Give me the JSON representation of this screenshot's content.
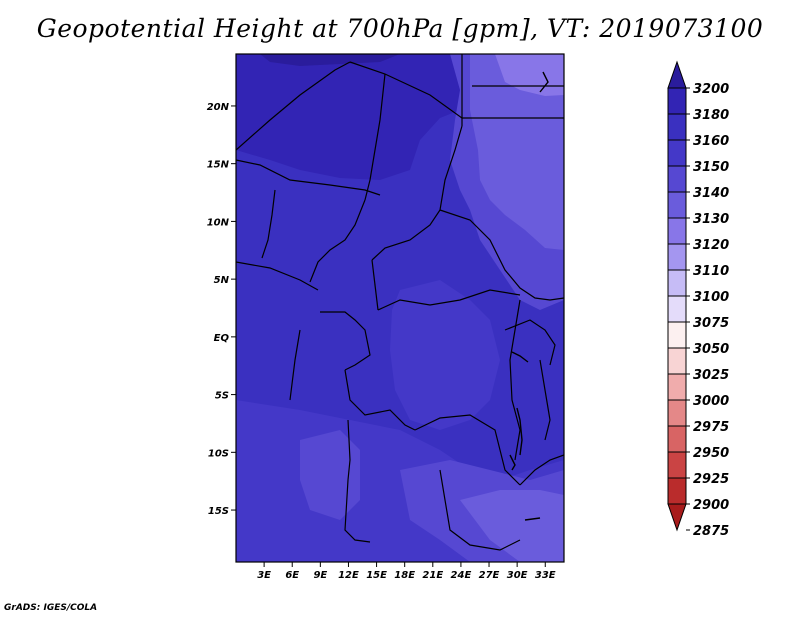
{
  "title": "Geopotential Height at 700hPa [gpm], VT: 2019073100",
  "credit": "GrADS: IGES/COLA",
  "map": {
    "lat_range": [
      -19.5,
      24.5
    ],
    "lon_range": [
      0,
      35
    ],
    "lat_ticks": [
      {
        "value": 20,
        "label": "20N"
      },
      {
        "value": 15,
        "label": "15N"
      },
      {
        "value": 10,
        "label": "10N"
      },
      {
        "value": 5,
        "label": "5N"
      },
      {
        "value": 0,
        "label": "EQ"
      },
      {
        "value": -5,
        "label": "5S"
      },
      {
        "value": -10,
        "label": "10S"
      },
      {
        "value": -15,
        "label": "15S"
      }
    ],
    "lon_ticks": [
      {
        "value": 3,
        "label": "3E"
      },
      {
        "value": 6,
        "label": "6E"
      },
      {
        "value": 9,
        "label": "9E"
      },
      {
        "value": 12,
        "label": "12E"
      },
      {
        "value": 15,
        "label": "15E"
      },
      {
        "value": 18,
        "label": "18E"
      },
      {
        "value": 21,
        "label": "21E"
      },
      {
        "value": 24,
        "label": "24E"
      },
      {
        "value": 27,
        "label": "27E"
      },
      {
        "value": 30,
        "label": "30E"
      },
      {
        "value": 33,
        "label": "33E"
      }
    ]
  },
  "colorbar": {
    "labels": [
      "3200",
      "3180",
      "3160",
      "3150",
      "3140",
      "3130",
      "3120",
      "3110",
      "3100",
      "3075",
      "3050",
      "3025",
      "3000",
      "2975",
      "2950",
      "2925",
      "2900",
      "2875"
    ],
    "colors": [
      "#2a1c9c",
      "#3224b4",
      "#3a30c0",
      "#4438c8",
      "#5648d2",
      "#6a5cdc",
      "#8876e8",
      "#a496f0",
      "#c6bcf6",
      "#e4dcfa",
      "#fcf0f0",
      "#f8d4d4",
      "#f0acac",
      "#e48888",
      "#d86464",
      "#ca4444",
      "#ba2c2c",
      "#a81c1c"
    ]
  }
}
